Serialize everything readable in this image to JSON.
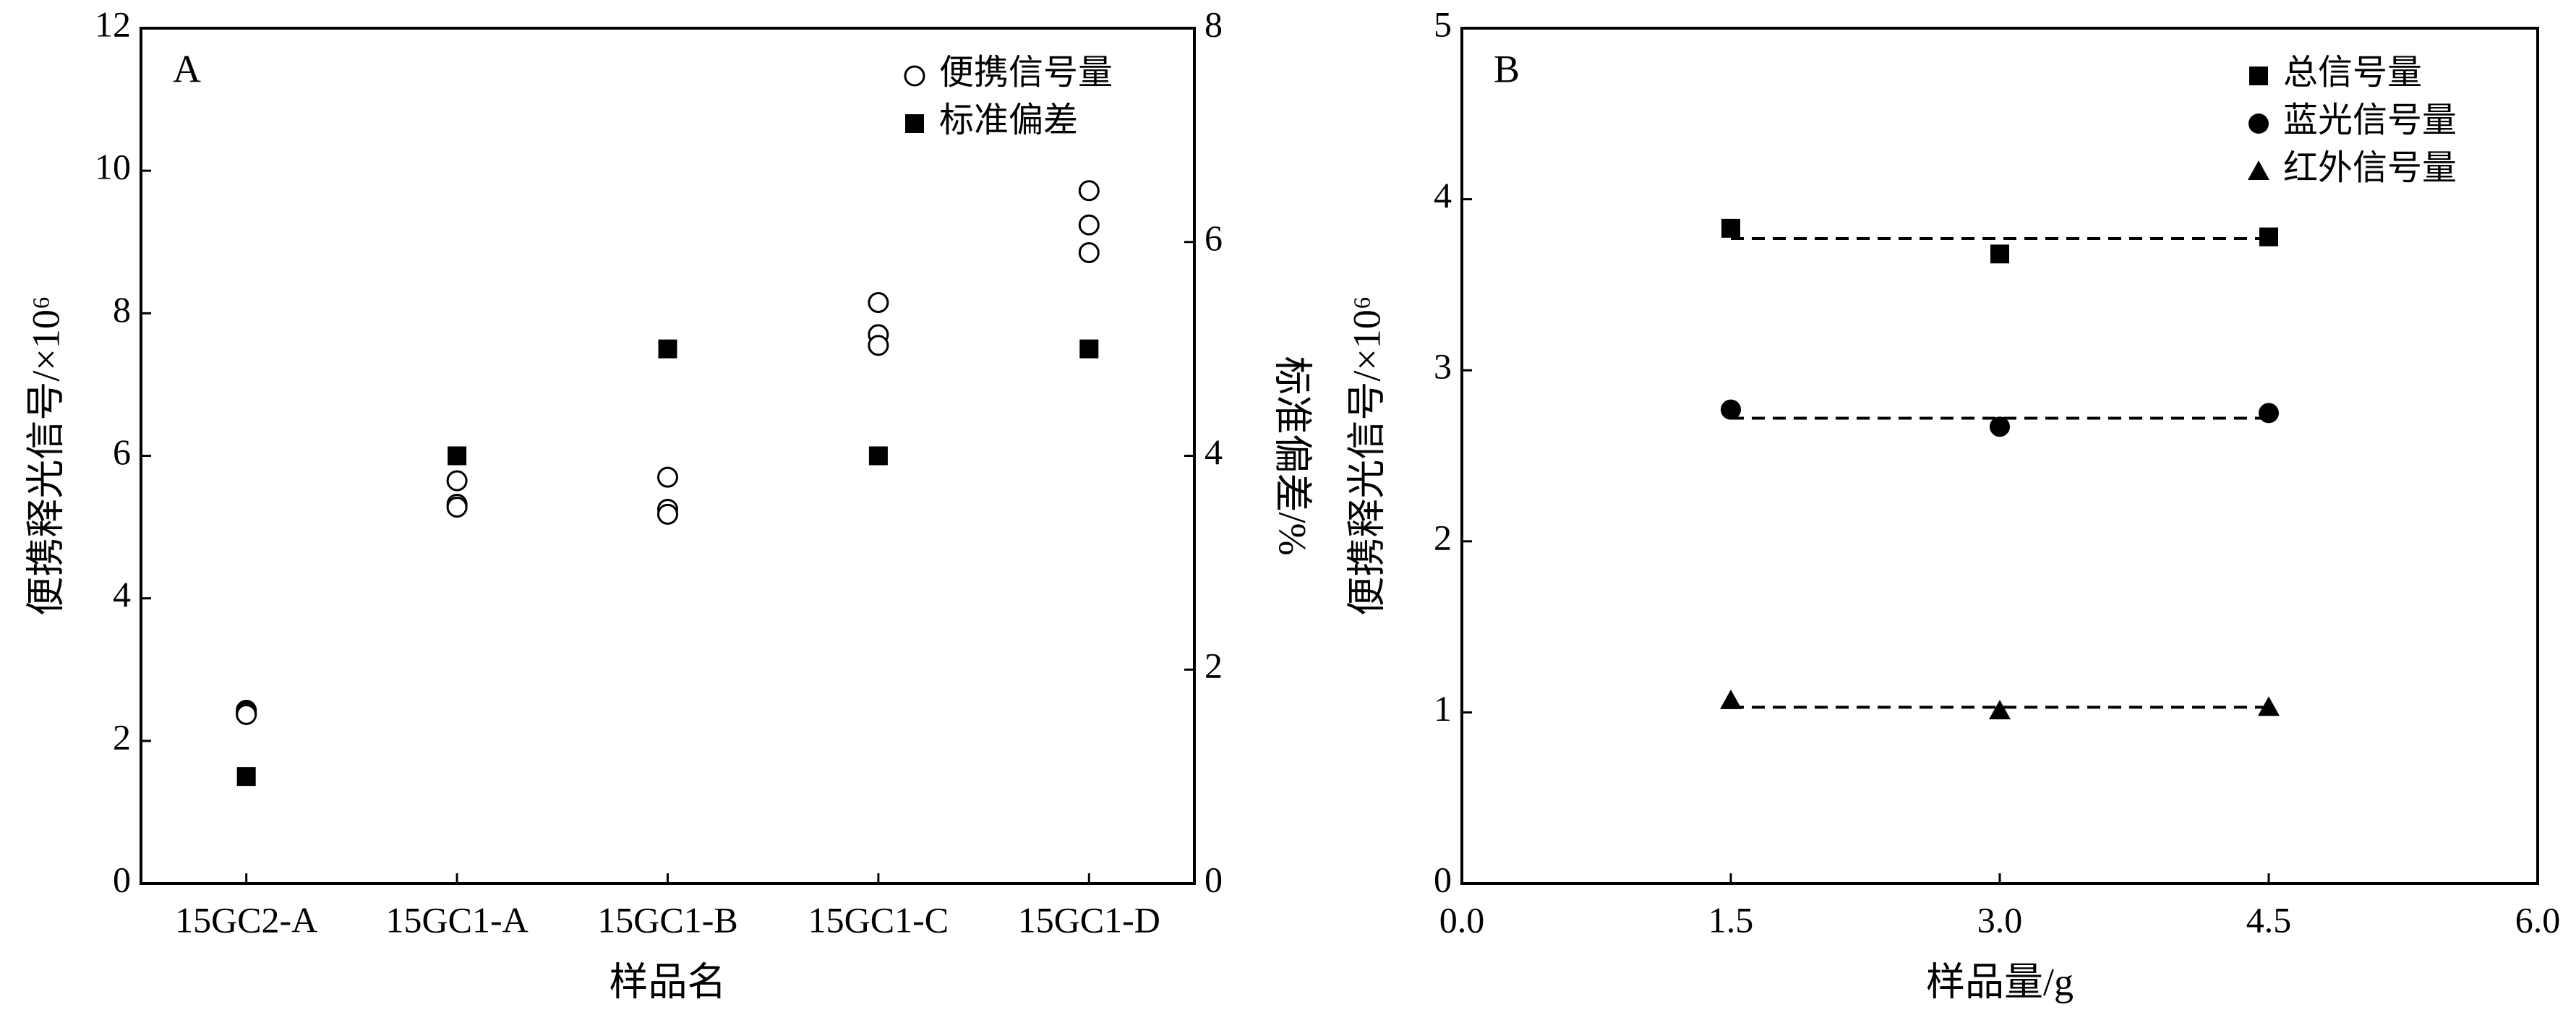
{
  "chart_data": [
    {
      "type": "scatter",
      "panel_label": "A",
      "x_label": "样品名",
      "y_label": "便携释光信号/×10⁶",
      "y2_label": "标准偏差/%",
      "categories": [
        "15GC2-A",
        "15GC1-A",
        "15GC1-B",
        "15GC1-C",
        "15GC1-D"
      ],
      "ylim": [
        0,
        12
      ],
      "yticks": [
        0,
        2,
        4,
        6,
        8,
        10,
        12
      ],
      "y2lim": [
        0,
        8
      ],
      "y2ticks": [
        0,
        2,
        4,
        6,
        8
      ],
      "legend": "upper right",
      "series": [
        {
          "name": "便携信号量",
          "marker": "open-circle",
          "color": "#000000",
          "values": [
            [
              2.43,
              2.4,
              2.37
            ],
            [
              5.65,
              5.32,
              5.28
            ],
            [
              5.7,
              5.25,
              5.18
            ],
            [
              8.15,
              7.7,
              7.55
            ],
            [
              9.72,
              9.24,
              8.85
            ]
          ]
        },
        {
          "name": "标准偏差",
          "marker": "square",
          "color": "#000000",
          "axis": "y2",
          "values": [
            1,
            4,
            5,
            4,
            5
          ]
        }
      ]
    },
    {
      "type": "scatter",
      "panel_label": "B",
      "x_label": "样品量/g",
      "y_label": "便携释光信号/×10⁶",
      "x": [
        1.5,
        3.0,
        4.5
      ],
      "xlim": [
        0,
        6
      ],
      "xticks": [
        {
          "value": 0,
          "label": "0.0"
        },
        {
          "value": 1.5,
          "label": "1.5"
        },
        {
          "value": 3,
          "label": "3.0"
        },
        {
          "value": 4.5,
          "label": "4.5"
        },
        {
          "value": 6,
          "label": "6.0"
        }
      ],
      "ylim": [
        0,
        5
      ],
      "yticks": [
        0,
        1,
        2,
        3,
        4,
        5
      ],
      "legend": "upper right",
      "series": [
        {
          "name": "总信号量",
          "marker": "square",
          "color": "#000000",
          "values": [
            3.83,
            3.68,
            3.78
          ],
          "fit_line": 3.77
        },
        {
          "name": "蓝光信号量",
          "marker": "circle",
          "color": "#000000",
          "values": [
            2.77,
            2.67,
            2.75
          ],
          "fit_line": 2.72
        },
        {
          "name": "红外信号量",
          "marker": "triangle",
          "color": "#000000",
          "values": [
            1.07,
            1.01,
            1.03
          ],
          "fit_line": 1.03
        }
      ]
    }
  ]
}
